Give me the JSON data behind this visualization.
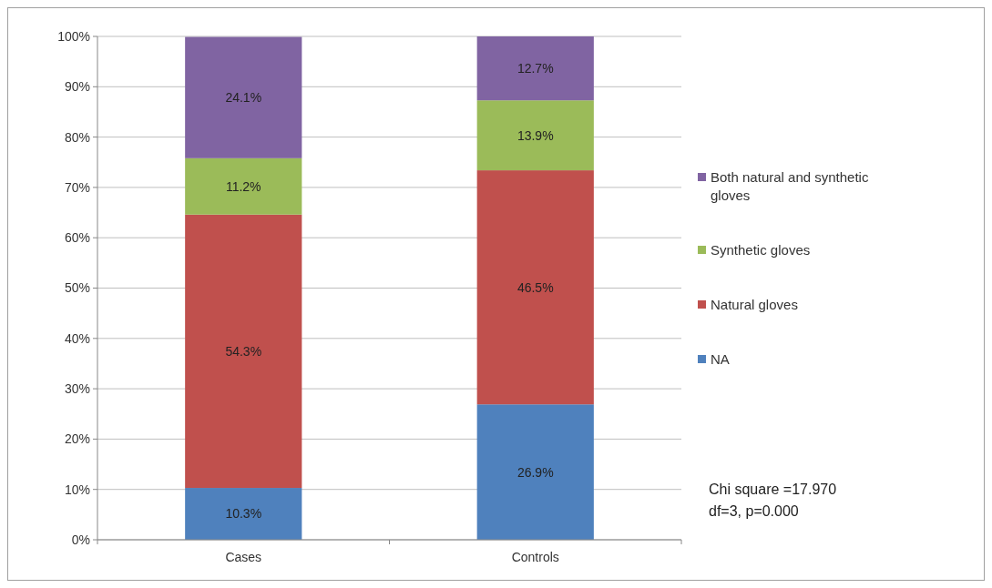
{
  "chart_data": {
    "type": "bar",
    "stacked": true,
    "categories": [
      "Cases",
      "Controls"
    ],
    "series": [
      {
        "name": "NA",
        "color": "#4f81bd",
        "values": [
          10.3,
          26.9
        ],
        "value_labels": [
          "10.3%",
          "26.9%"
        ]
      },
      {
        "name": "Natural gloves",
        "color": "#c0504d",
        "values": [
          54.3,
          46.5
        ],
        "value_labels": [
          "54.3%",
          "46.5%"
        ]
      },
      {
        "name": "Synthetic gloves",
        "color": "#9bbb59",
        "values": [
          11.2,
          13.9
        ],
        "value_labels": [
          "11.2%",
          "13.9%"
        ]
      },
      {
        "name": "Both natural and synthetic gloves",
        "color": "#8064a2",
        "values": [
          24.1,
          12.7
        ],
        "value_labels": [
          "24.1%",
          "12.7%"
        ]
      }
    ],
    "ylim": [
      0,
      100
    ],
    "yticks": [
      {
        "value": 0,
        "label": "0%"
      },
      {
        "value": 10,
        "label": "10%"
      },
      {
        "value": 20,
        "label": "20%"
      },
      {
        "value": 30,
        "label": "30%"
      },
      {
        "value": 40,
        "label": "40%"
      },
      {
        "value": 50,
        "label": "50%"
      },
      {
        "value": 60,
        "label": "60%"
      },
      {
        "value": 70,
        "label": "70%"
      },
      {
        "value": 80,
        "label": "80%"
      },
      {
        "value": 90,
        "label": "90%"
      },
      {
        "value": 100,
        "label": "100%"
      }
    ],
    "grid": "y",
    "legend": "right",
    "annotations": [
      "Chi square =17.970",
      "df=3, p=0.000"
    ]
  }
}
